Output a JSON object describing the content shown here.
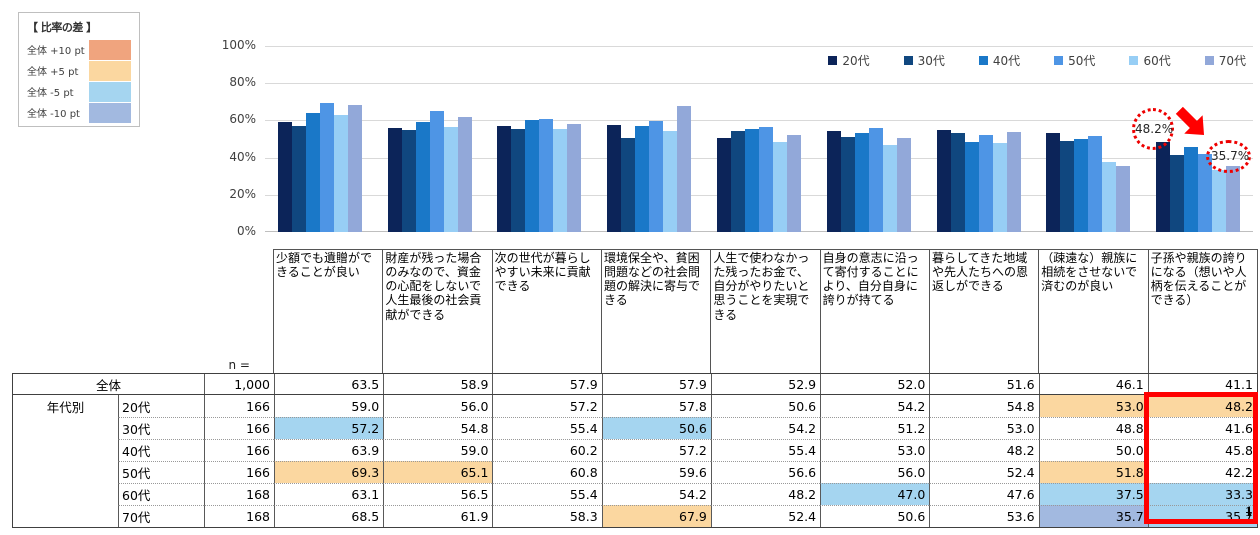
{
  "page": {
    "number": "1"
  },
  "diff_legend": {
    "title": "【 比率の差 】",
    "items": [
      {
        "code": "p10",
        "label": "全体 +10 pt",
        "color": "#F0A47E"
      },
      {
        "code": "p5",
        "label": "全体 +5 pt",
        "color": "#FBD7A0"
      },
      {
        "code": "m5",
        "label": "全体 -5 pt",
        "color": "#A5D5F0"
      },
      {
        "code": "m10",
        "label": "全体 -10 pt",
        "color": "#A2B9E0"
      }
    ]
  },
  "chart_data": {
    "type": "bar",
    "title": "",
    "xlabel": "",
    "ylabel": "",
    "ylim": [
      0,
      100
    ],
    "yticks": [
      0,
      20,
      40,
      60,
      80,
      100
    ],
    "ytick_suffix": "%",
    "grid": true,
    "legend_position": "top-right",
    "categories": [
      "少額でも遺贈ができることが良い",
      "財産が残った場合のみなので、資金の心配をしないで人生最後の社会貢献ができる",
      "次の世代が暮らしやすい未来に貢献できる",
      "環境保全や、貧困問題などの社会問題の解決に寄与できる",
      "人生で使わなかった残ったお金で、自分がやりたいと思うことを実現できる",
      "自身の意志に沿って寄付することにより、自分自身に誇りが持てる",
      "暮らしてきた地域や先人たちへの恩返しができる",
      "（疎遠な）親族に相続をさせないで済むのが良い",
      "子孫や親族の誇りになる（想いや人柄を伝えることができる）"
    ],
    "series": [
      {
        "name": "20代",
        "color": "#0C2459",
        "values": [
          59.0,
          56.0,
          57.2,
          57.8,
          50.6,
          54.2,
          54.8,
          53.0,
          48.2
        ]
      },
      {
        "name": "30代",
        "color": "#10477F",
        "values": [
          57.2,
          54.8,
          55.4,
          50.6,
          54.2,
          51.2,
          53.0,
          48.8,
          41.6
        ]
      },
      {
        "name": "40代",
        "color": "#1A78C8",
        "values": [
          63.9,
          59.0,
          60.2,
          57.2,
          55.4,
          53.0,
          48.2,
          50.0,
          45.8
        ]
      },
      {
        "name": "50代",
        "color": "#4E95E5",
        "values": [
          69.3,
          65.1,
          60.8,
          59.6,
          56.6,
          56.0,
          52.4,
          51.8,
          42.2
        ]
      },
      {
        "name": "60代",
        "color": "#97CEF5",
        "values": [
          63.1,
          56.5,
          55.4,
          54.2,
          48.2,
          47.0,
          47.6,
          37.5,
          33.3
        ]
      },
      {
        "name": "70代",
        "color": "#92A8D9",
        "values": [
          68.5,
          61.9,
          58.3,
          67.9,
          52.4,
          50.6,
          53.6,
          35.7,
          35.7
        ]
      }
    ],
    "annotations": [
      {
        "text": "48.2%",
        "series": "20代",
        "category_index": 8,
        "style": "dotted-red-ellipse"
      },
      {
        "text": "35.7%",
        "series": "70代",
        "category_index": 8,
        "style": "dotted-red-ellipse"
      },
      {
        "type": "arrow",
        "direction": "down-right",
        "color": "#FF0000"
      }
    ]
  },
  "annotation": {
    "start_value": "48.2%",
    "end_value": "35.7%",
    "color": "#FF0000"
  },
  "table": {
    "n_label": "n =",
    "group_label": "年代別",
    "overall_row": {
      "label": "全体",
      "n": "1,000",
      "values": [
        63.5,
        58.9,
        57.9,
        57.9,
        52.9,
        52.0,
        51.6,
        46.1,
        41.1
      ]
    },
    "rows": [
      {
        "label": "20代",
        "n": "166",
        "values": [
          59.0,
          56.0,
          57.2,
          57.8,
          50.6,
          54.2,
          54.8,
          53.0,
          48.2
        ],
        "hl": [
          null,
          null,
          null,
          null,
          null,
          null,
          null,
          "p5",
          "p5"
        ]
      },
      {
        "label": "30代",
        "n": "166",
        "values": [
          57.2,
          54.8,
          55.4,
          50.6,
          54.2,
          51.2,
          53.0,
          48.8,
          41.6
        ],
        "hl": [
          "m5",
          null,
          null,
          "m5",
          null,
          null,
          null,
          null,
          null
        ]
      },
      {
        "label": "40代",
        "n": "166",
        "values": [
          63.9,
          59.0,
          60.2,
          57.2,
          55.4,
          53.0,
          48.2,
          50.0,
          45.8
        ],
        "hl": [
          null,
          null,
          null,
          null,
          null,
          null,
          null,
          null,
          null
        ]
      },
      {
        "label": "50代",
        "n": "166",
        "values": [
          69.3,
          65.1,
          60.8,
          59.6,
          56.6,
          56.0,
          52.4,
          51.8,
          42.2
        ],
        "hl": [
          "p5",
          "p5",
          null,
          null,
          null,
          null,
          null,
          "p5",
          null
        ]
      },
      {
        "label": "60代",
        "n": "168",
        "values": [
          63.1,
          56.5,
          55.4,
          54.2,
          48.2,
          47.0,
          47.6,
          37.5,
          33.3
        ],
        "hl": [
          null,
          null,
          null,
          null,
          null,
          "m5",
          null,
          "m5",
          "m5"
        ]
      },
      {
        "label": "70代",
        "n": "168",
        "values": [
          68.5,
          61.9,
          58.3,
          67.9,
          52.4,
          50.6,
          53.6,
          35.7,
          35.7
        ],
        "hl": [
          null,
          null,
          null,
          "p5",
          null,
          null,
          null,
          "m10",
          "m5"
        ]
      }
    ],
    "highlight_color": "#FF0000"
  }
}
